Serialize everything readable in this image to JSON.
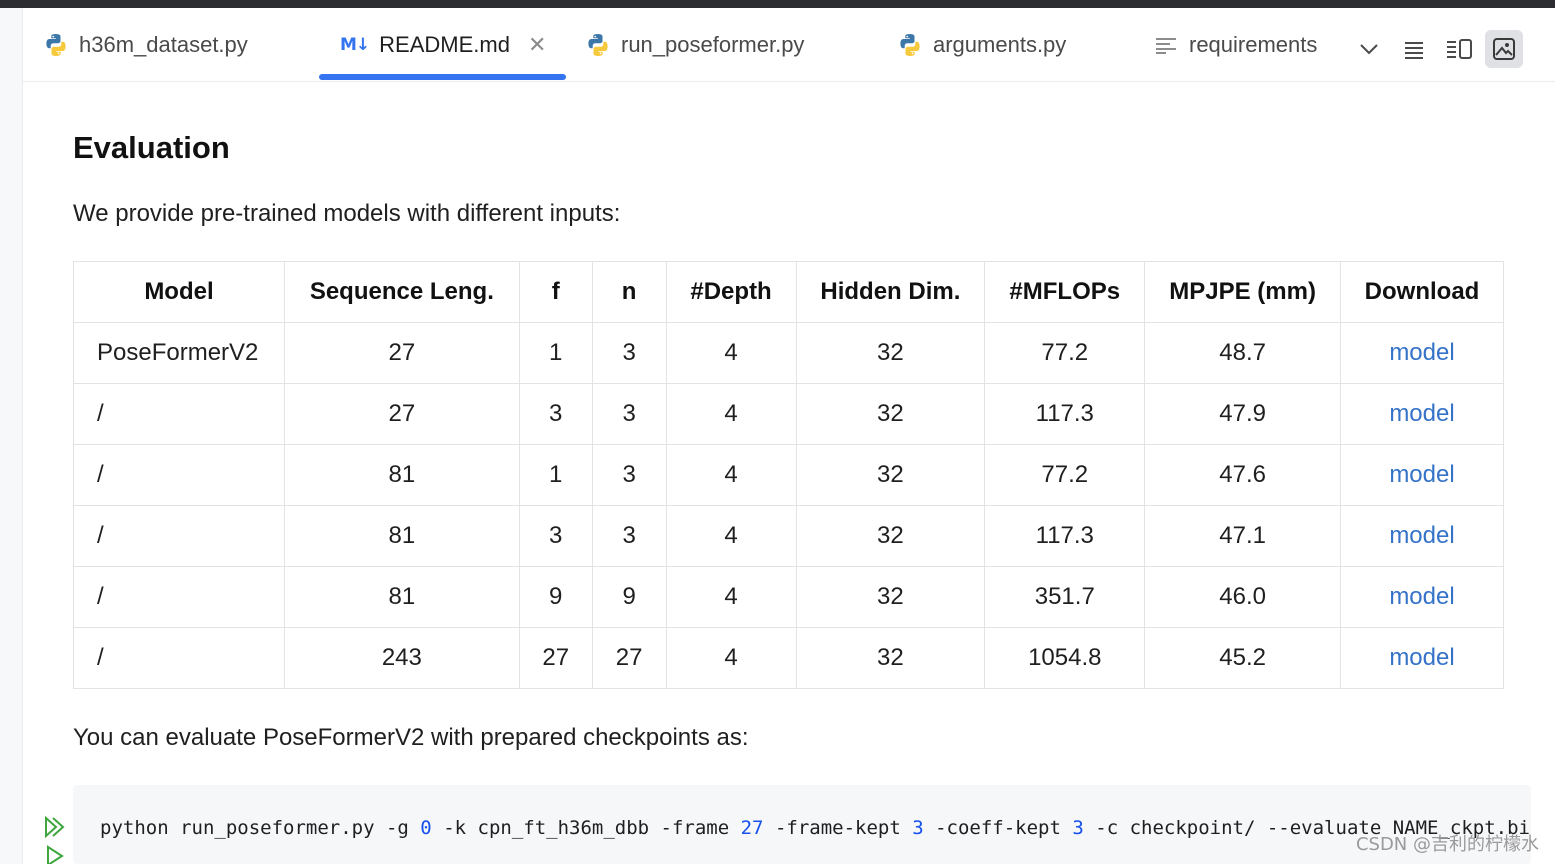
{
  "tabs": [
    {
      "label": "h36m_dataset.py",
      "icon": "python-file-icon"
    },
    {
      "label": "README.md",
      "icon": "markdown-file-icon",
      "active": true,
      "icon_text": "M↓"
    },
    {
      "label": "run_poseformer.py",
      "icon": "python-file-icon"
    },
    {
      "label": "arguments.py",
      "icon": "python-file-icon"
    },
    {
      "label": "requirements",
      "icon": "text-file-icon"
    }
  ],
  "toolbar": {
    "items": [
      "chevron-down-icon",
      "editor-only-icon",
      "editor-and-preview-icon",
      "preview-only-icon"
    ]
  },
  "doc": {
    "heading": "Evaluation",
    "intro": "We provide pre-trained models with different inputs:",
    "table": {
      "headers": [
        "Model",
        "Sequence Leng.",
        "f",
        "n",
        "#Depth",
        "Hidden Dim.",
        "#MFLOPs",
        "MPJPE (mm)",
        "Download"
      ],
      "rows": [
        [
          "PoseFormerV2",
          "27",
          "1",
          "3",
          "4",
          "32",
          "77.2",
          "48.7",
          "model"
        ],
        [
          "/",
          "27",
          "3",
          "3",
          "4",
          "32",
          "117.3",
          "47.9",
          "model"
        ],
        [
          "/",
          "81",
          "1",
          "3",
          "4",
          "32",
          "77.2",
          "47.6",
          "model"
        ],
        [
          "/",
          "81",
          "3",
          "3",
          "4",
          "32",
          "117.3",
          "47.1",
          "model"
        ],
        [
          "/",
          "81",
          "9",
          "9",
          "4",
          "32",
          "351.7",
          "46.0",
          "model"
        ],
        [
          "/",
          "243",
          "27",
          "27",
          "4",
          "32",
          "1054.8",
          "45.2",
          "model"
        ]
      ]
    },
    "outro": "You can evaluate PoseFormerV2 with prepared checkpoints as:",
    "code": {
      "parts": [
        {
          "t": "python run_poseformer.py -g "
        },
        {
          "t": "0",
          "num": true
        },
        {
          "t": " -k cpn_ft_h36m_dbb -frame "
        },
        {
          "t": "27",
          "num": true
        },
        {
          "t": " -frame-kept "
        },
        {
          "t": "3",
          "num": true
        },
        {
          "t": " -coeff-kept "
        },
        {
          "t": "3",
          "num": true
        },
        {
          "t": " -c checkpoint/ --evaluate NAME_ckpt.bin"
        }
      ]
    }
  },
  "watermark": "CSDN @吉利的柠檬水",
  "colors": {
    "accent": "#3574f0",
    "link": "#3573c8",
    "code_number": "#1750eb",
    "run_icon": "#3fa63f"
  }
}
